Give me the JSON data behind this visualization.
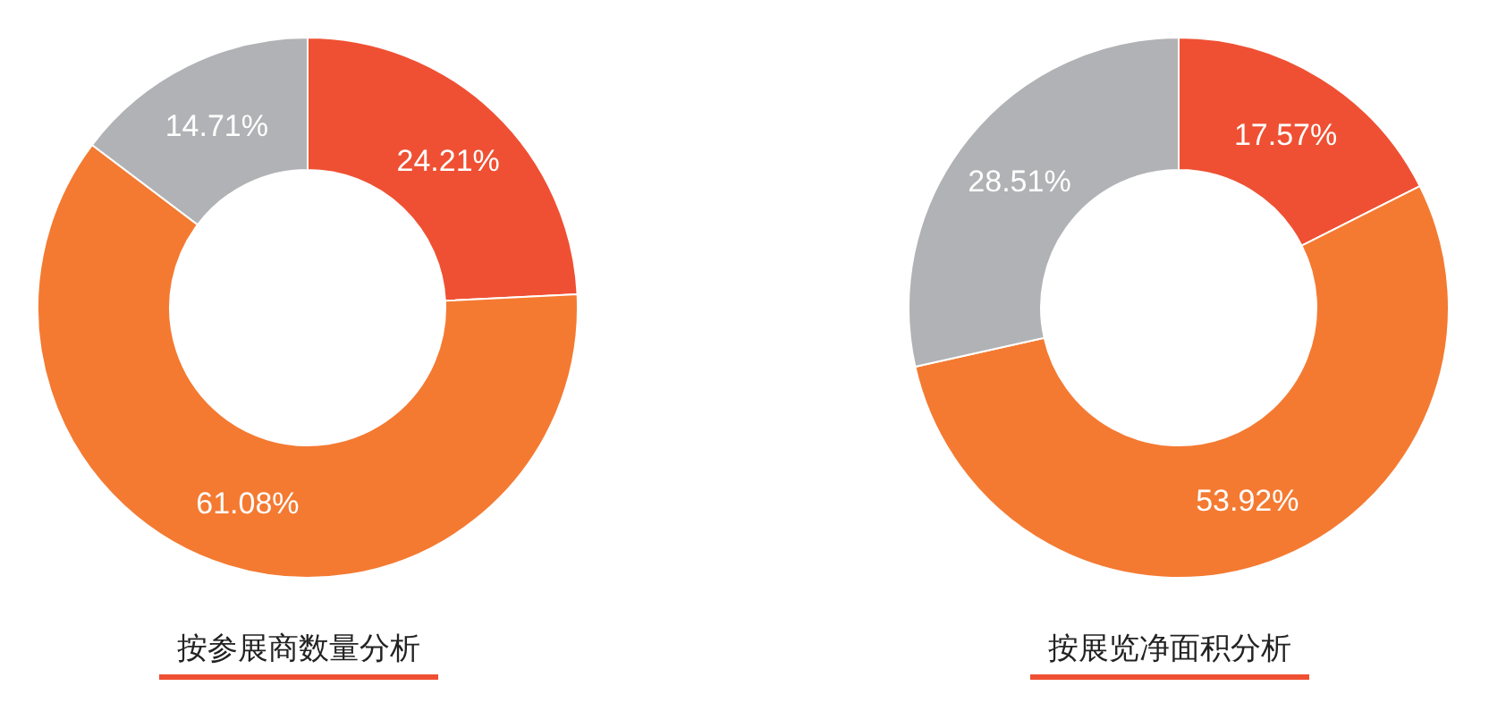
{
  "chart_data": [
    {
      "type": "donut",
      "title": "按参展商数量分析",
      "categories": [
        null,
        null,
        null
      ],
      "values": [
        24.21,
        61.08,
        14.71
      ],
      "colors": [
        "#ef5033",
        "#f47a32",
        "#b1b2b5"
      ],
      "value_labels": [
        "24.21%",
        "61.08%",
        "14.71%"
      ]
    },
    {
      "type": "donut",
      "title": "按展览净面积分析",
      "categories": [
        null,
        null,
        null
      ],
      "values": [
        17.57,
        53.92,
        28.51
      ],
      "colors": [
        "#ef5033",
        "#f47a32",
        "#b1b2b5"
      ],
      "value_labels": [
        "17.57%",
        "53.92%",
        "28.51%"
      ]
    }
  ]
}
